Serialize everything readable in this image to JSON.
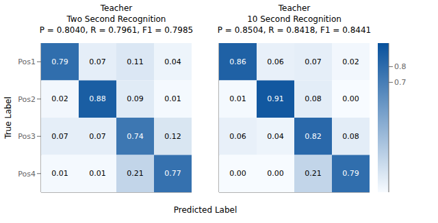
{
  "chart_data": [
    {
      "type": "heatmap",
      "title": "Teacher\nTwo Second Recognition\nP = 0.8040, R = 0.7961, F1 = 0.7985",
      "categories": [
        "Pos1",
        "Pos2",
        "Pos3",
        "Pos4"
      ],
      "values": [
        [
          0.79,
          0.07,
          0.11,
          0.04
        ],
        [
          0.02,
          0.88,
          0.09,
          0.01
        ],
        [
          0.07,
          0.07,
          0.74,
          0.12
        ],
        [
          0.01,
          0.01,
          0.21,
          0.77
        ]
      ],
      "value_labels": [
        [
          "0.79",
          "0.07",
          "0.11",
          "0.04"
        ],
        [
          "0.02",
          "0.88",
          "0.09",
          "0.01"
        ],
        [
          "0.07",
          "0.07",
          "0.74",
          "0.12"
        ],
        [
          "0.01",
          "0.01",
          "0.21",
          "0.77"
        ]
      ],
      "data_labels": true,
      "tick_labels": "y",
      "x_label": "Predicted Label",
      "y_label": "True Label",
      "color": "#08519c",
      "color_range": [
        0.0,
        0.95
      ]
    },
    {
      "type": "heatmap",
      "title": "Teacher\n10 Second Recognition\nP = 0.8504, R = 0.8418, F1 = 0.8441",
      "categories": [
        "Pos1",
        "Pos2",
        "Pos3",
        "Pos4"
      ],
      "values": [
        [
          0.86,
          0.06,
          0.07,
          0.02
        ],
        [
          0.01,
          0.91,
          0.08,
          0.0
        ],
        [
          0.06,
          0.04,
          0.82,
          0.08
        ],
        [
          0.0,
          0.0,
          0.21,
          0.79
        ]
      ],
      "value_labels": [
        [
          "0.86",
          "0.06",
          "0.07",
          "0.02"
        ],
        [
          "0.01",
          "0.91",
          "0.08",
          "0.00"
        ],
        [
          "0.06",
          "0.04",
          "0.82",
          "0.08"
        ],
        [
          "0.00",
          "0.00",
          "0.21",
          "0.79"
        ]
      ],
      "data_labels": true,
      "tick_labels": false,
      "color": "#08519c",
      "color_range": [
        0.0,
        0.95
      ],
      "color_ticks": [
        0.8,
        0.7
      ]
    }
  ]
}
